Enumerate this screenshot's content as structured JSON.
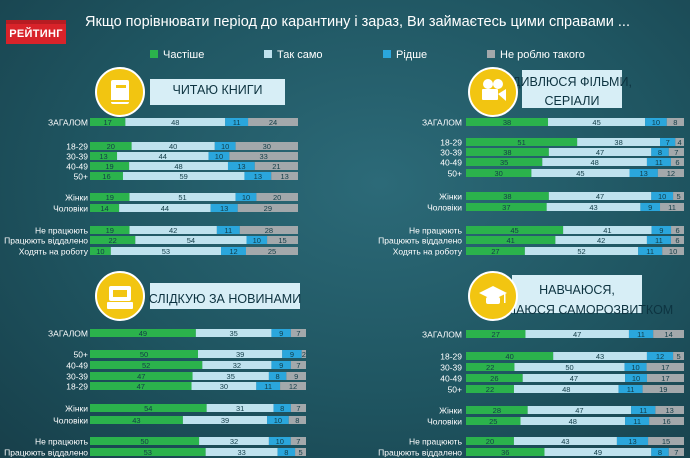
{
  "header": {
    "logo": "РЕЙТИНГ",
    "title": "Якщо порівнювати  період до карантину і зараз, Ви займаєтесь цими справами ..."
  },
  "colors": {
    "more": "#2bb24c",
    "same": "#bfe2ee",
    "less": "#2aa6dc",
    "none": "#a3a8ab",
    "icon_circle": "#f2c511",
    "panel_title_bg": "#d7eef6"
  },
  "legend": [
    {
      "key": "more",
      "label": "Частіше"
    },
    {
      "key": "same",
      "label": "Так само"
    },
    {
      "key": "less",
      "label": "Рідше"
    },
    {
      "key": "none",
      "label": "Не роблю такого"
    }
  ],
  "chart_data": [
    {
      "type": "bar",
      "stacked": true,
      "orientation": "horizontal",
      "title": "ЧИТАЮ КНИГИ",
      "icon": "book-icon",
      "series_keys": [
        "more",
        "same",
        "less",
        "none"
      ],
      "categories": [
        "ЗАГАЛОМ",
        "18-29",
        "30-39",
        "40-49",
        "50+",
        "Жінки",
        "Чоловіки",
        "Не працюють",
        "Працюють віддалено",
        "Ходять на роботу"
      ],
      "values": [
        [
          17,
          48,
          11,
          24
        ],
        [
          20,
          40,
          10,
          30
        ],
        [
          13,
          44,
          10,
          33
        ],
        [
          19,
          48,
          13,
          21
        ],
        [
          16,
          59,
          13,
          13
        ],
        [
          19,
          51,
          10,
          20
        ],
        [
          14,
          44,
          13,
          29
        ],
        [
          19,
          42,
          11,
          28
        ],
        [
          22,
          54,
          10,
          15
        ],
        [
          10,
          53,
          12,
          25
        ]
      ]
    },
    {
      "type": "bar",
      "stacked": true,
      "orientation": "horizontal",
      "title": "ДИВЛЮСЯ ФІЛЬМИ, СЕРІАЛИ",
      "icon": "film-camera-icon",
      "series_keys": [
        "more",
        "same",
        "less",
        "none"
      ],
      "categories": [
        "ЗАГАЛОМ",
        "18-29",
        "30-39",
        "40-49",
        "50+",
        "Жінки",
        "Чоловіки",
        "Не працюють",
        "Працюють віддалено",
        "Ходять на роботу"
      ],
      "values": [
        [
          38,
          45,
          10,
          8
        ],
        [
          51,
          38,
          7,
          4
        ],
        [
          38,
          47,
          8,
          7
        ],
        [
          35,
          48,
          11,
          6
        ],
        [
          30,
          45,
          13,
          12
        ],
        [
          38,
          47,
          10,
          5
        ],
        [
          37,
          43,
          9,
          11
        ],
        [
          45,
          41,
          9,
          6
        ],
        [
          41,
          42,
          11,
          6
        ],
        [
          27,
          52,
          11,
          10
        ]
      ]
    },
    {
      "type": "bar",
      "stacked": true,
      "orientation": "horizontal",
      "title": "СЛІДКУЮ ЗА НОВИНАМИ",
      "icon": "news-icon",
      "series_keys": [
        "more",
        "same",
        "less",
        "none"
      ],
      "categories": [
        "ЗАГАЛОМ",
        "50+",
        "40-49",
        "30-39",
        "18-29",
        "Жінки",
        "Чоловіки",
        "Не працюють",
        "Працюють віддалено"
      ],
      "values": [
        [
          49,
          35,
          9,
          7
        ],
        [
          50,
          39,
          9,
          2
        ],
        [
          52,
          32,
          9,
          7
        ],
        [
          47,
          35,
          8,
          9
        ],
        [
          47,
          30,
          11,
          12
        ],
        [
          54,
          31,
          8,
          7
        ],
        [
          43,
          39,
          10,
          8
        ],
        [
          50,
          32,
          10,
          7
        ],
        [
          53,
          33,
          8,
          5
        ]
      ]
    },
    {
      "type": "bar",
      "stacked": true,
      "orientation": "horizontal",
      "title": "НАВЧАЮСЯ, ЗАЙМАЮСЯ САМОРОЗВИТКОМ",
      "icon": "graduation-cap-icon",
      "series_keys": [
        "more",
        "same",
        "less",
        "none"
      ],
      "categories": [
        "ЗАГАЛОМ",
        "18-29",
        "30-39",
        "40-49",
        "50+",
        "Жінки",
        "Чоловіки",
        "Не працюють",
        "Працюють віддалено"
      ],
      "values": [
        [
          27,
          47,
          11,
          14
        ],
        [
          40,
          43,
          12,
          5
        ],
        [
          22,
          50,
          10,
          17
        ],
        [
          26,
          47,
          10,
          17
        ],
        [
          22,
          48,
          11,
          19
        ],
        [
          28,
          47,
          11,
          13
        ],
        [
          25,
          48,
          11,
          16
        ],
        [
          20,
          43,
          13,
          15
        ],
        [
          36,
          49,
          8,
          7
        ]
      ]
    }
  ]
}
